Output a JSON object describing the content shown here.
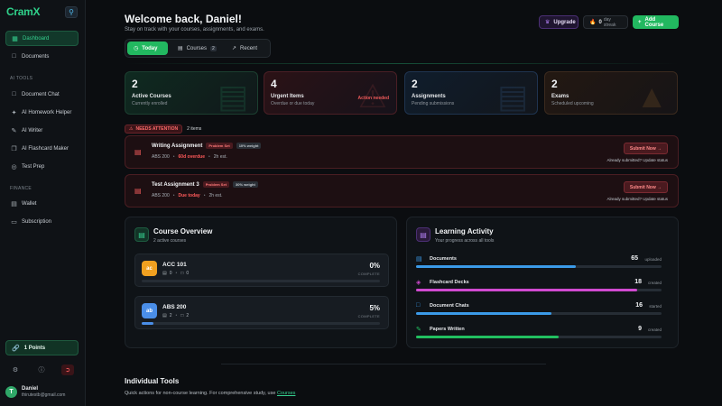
{
  "app": {
    "logo": "CramX"
  },
  "sidebar": {
    "items": [
      {
        "label": "Dashboard",
        "icon": "grid-icon"
      },
      {
        "label": "Documents",
        "icon": "file-icon"
      },
      {
        "label": "Document Chat",
        "icon": "chat-icon"
      },
      {
        "label": "AI Homework Helper",
        "icon": "sparkle-icon"
      },
      {
        "label": "AI Writer",
        "icon": "pen-icon"
      },
      {
        "label": "AI Flashcard Maker",
        "icon": "cards-icon"
      },
      {
        "label": "Test Prep",
        "icon": "target-icon"
      },
      {
        "label": "Wallet",
        "icon": "wallet-icon"
      },
      {
        "label": "Subscription",
        "icon": "card-icon"
      }
    ],
    "sections": {
      "ai_tools": "AI TOOLS",
      "finance": "FINANCE"
    },
    "points": "1 Points",
    "user": {
      "initial": "T",
      "name": "Daniel",
      "email": "thirutestb@gmail.com"
    }
  },
  "header": {
    "title": "Welcome back, Daniel!",
    "subtitle": "Stay on track with your courses, assignments, and exams.",
    "upgrade": "Upgrade",
    "streak_value": "0",
    "streak_label": "day streak",
    "add_course": "Add Course"
  },
  "tabs": [
    {
      "label": "Today"
    },
    {
      "label": "Courses",
      "count": "2"
    },
    {
      "label": "Recent"
    }
  ],
  "stats": [
    {
      "value": "2",
      "label": "Active Courses",
      "sub": "Currently enrolled"
    },
    {
      "value": "4",
      "label": "Urgent Items",
      "sub": "Overdue or due today",
      "tag": "Action needed"
    },
    {
      "value": "2",
      "label": "Assignments",
      "sub": "Pending submissions"
    },
    {
      "value": "2",
      "label": "Exams",
      "sub": "Scheduled upcoming"
    }
  ],
  "attention": {
    "badge": "NEEDS ATTENTION",
    "count": "2 items"
  },
  "tasks": [
    {
      "name": "Writing Assignment",
      "type": "Problem Set",
      "weight": "10% weight",
      "course": "ABS 200",
      "due": "60d overdue",
      "est": "2h est.",
      "submit": "Submit Now",
      "already": "Already submitted? Update status"
    },
    {
      "name": "Test Assignment 3",
      "type": "Problem Set",
      "weight": "30% weight",
      "course": "ABS 200",
      "due": "Due today",
      "est": "2h est.",
      "submit": "Submit Now",
      "already": "Already submitted? Update status"
    }
  ],
  "course_overview": {
    "title": "Course Overview",
    "sub": "2 active courses",
    "courses": [
      {
        "abbr": "ac",
        "name": "ACC 101",
        "docs": "0",
        "chats": "0",
        "percent": "0%",
        "complete": "COMPLETE",
        "progress": 0,
        "color": "#f0a020"
      },
      {
        "abbr": "ab",
        "name": "ABS 200",
        "docs": "2",
        "chats": "2",
        "percent": "5%",
        "complete": "COMPLETE",
        "progress": 5,
        "color": "#4a8ee8"
      }
    ]
  },
  "learning_activity": {
    "title": "Learning Activity",
    "sub": "Your progress across all tools",
    "items": [
      {
        "name": "Documents",
        "value": "65",
        "unit": "uploaded",
        "progress": 65,
        "color": "#3b9ae8",
        "icon": "file-icon"
      },
      {
        "name": "Flashcard Decks",
        "value": "18",
        "unit": "created",
        "progress": 90,
        "color": "#d04ad0",
        "icon": "layers-icon"
      },
      {
        "name": "Document Chats",
        "value": "16",
        "unit": "started",
        "progress": 55,
        "color": "#3b9ae8",
        "icon": "chat-icon"
      },
      {
        "name": "Papers Written",
        "value": "9",
        "unit": "created",
        "progress": 58,
        "color": "#22c060",
        "icon": "pen-icon"
      }
    ]
  },
  "individual_tools": {
    "title": "Individual Tools",
    "sub": "Quick actions for non-course learning. For comprehensive study, use ",
    "link": "Courses"
  }
}
